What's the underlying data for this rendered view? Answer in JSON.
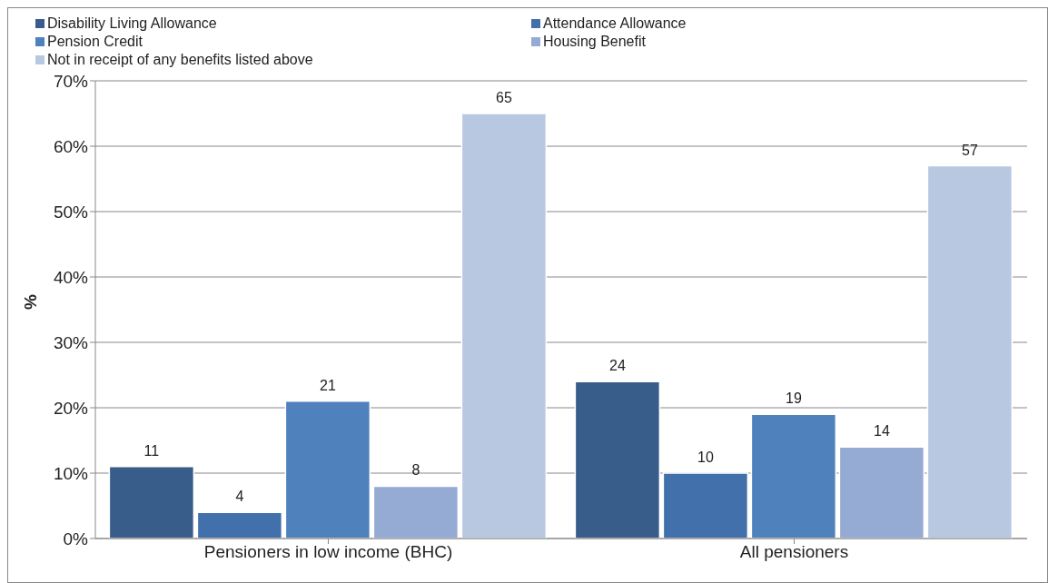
{
  "chart_data": {
    "type": "bar",
    "ylabel": "%",
    "categories": [
      "Pensioners in low income (BHC)",
      "All pensioners"
    ],
    "series": [
      {
        "name": "Disability Living Allowance",
        "color": "#385d8a",
        "values": [
          11,
          24
        ]
      },
      {
        "name": "Attendance Allowance",
        "color": "#4270ab",
        "values": [
          4,
          10
        ]
      },
      {
        "name": "Pension Credit",
        "color": "#4f81bd",
        "values": [
          21,
          19
        ]
      },
      {
        "name": "Housing Benefit",
        "color": "#95abd4",
        "values": [
          8,
          14
        ]
      },
      {
        "name": "Not in receipt of any benefits listed above",
        "color": "#b9c8e1",
        "values": [
          65,
          57
        ]
      }
    ],
    "ylim": [
      0,
      70
    ],
    "yticks": [
      {
        "value": 0,
        "label": "0%"
      },
      {
        "value": 10,
        "label": "10%"
      },
      {
        "value": 20,
        "label": "20%"
      },
      {
        "value": 30,
        "label": "30%"
      },
      {
        "value": 40,
        "label": "40%"
      },
      {
        "value": 50,
        "label": "50%"
      },
      {
        "value": 60,
        "label": "60%"
      },
      {
        "value": 70,
        "label": "70%"
      }
    ],
    "grid": "y",
    "legend": "top",
    "data_labels": true
  }
}
